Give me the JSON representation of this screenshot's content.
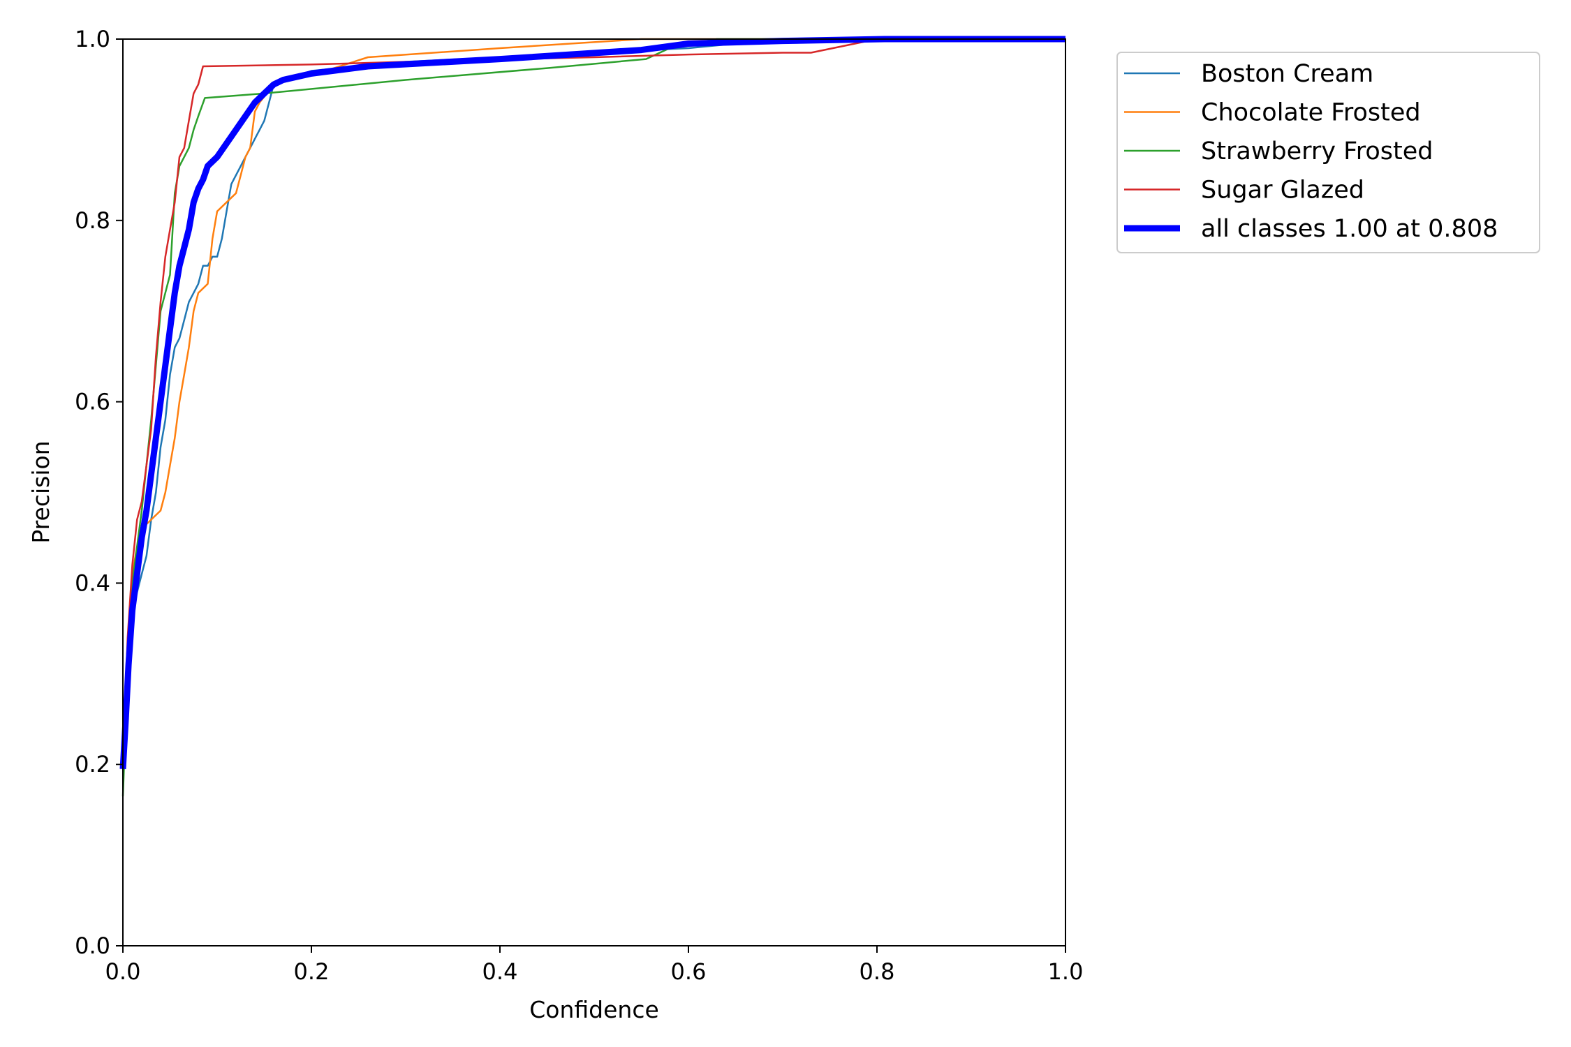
{
  "chart_data": {
    "type": "line",
    "title": "",
    "xlabel": "Confidence",
    "ylabel": "Precision",
    "xlim": [
      0,
      1
    ],
    "ylim": [
      0,
      1
    ],
    "xticks": [
      "0.0",
      "0.2",
      "0.4",
      "0.6",
      "0.8",
      "1.0"
    ],
    "yticks": [
      "0.0",
      "0.2",
      "0.4",
      "0.6",
      "0.8",
      "1.0"
    ],
    "grid": false,
    "legend_position": "outside-top-right",
    "series": [
      {
        "name": "Boston Cream",
        "color": "#1f77b4",
        "width": 2.5,
        "points": [
          [
            0.0,
            0.2
          ],
          [
            0.005,
            0.3
          ],
          [
            0.01,
            0.37
          ],
          [
            0.015,
            0.39
          ],
          [
            0.02,
            0.41
          ],
          [
            0.025,
            0.43
          ],
          [
            0.03,
            0.47
          ],
          [
            0.035,
            0.5
          ],
          [
            0.04,
            0.55
          ],
          [
            0.045,
            0.58
          ],
          [
            0.05,
            0.63
          ],
          [
            0.055,
            0.66
          ],
          [
            0.06,
            0.67
          ],
          [
            0.065,
            0.69
          ],
          [
            0.07,
            0.71
          ],
          [
            0.075,
            0.72
          ],
          [
            0.08,
            0.73
          ],
          [
            0.085,
            0.75
          ],
          [
            0.09,
            0.75
          ],
          [
            0.095,
            0.76
          ],
          [
            0.1,
            0.76
          ],
          [
            0.105,
            0.78
          ],
          [
            0.11,
            0.81
          ],
          [
            0.115,
            0.84
          ],
          [
            0.12,
            0.85
          ],
          [
            0.125,
            0.86
          ],
          [
            0.13,
            0.87
          ],
          [
            0.135,
            0.88
          ],
          [
            0.14,
            0.89
          ],
          [
            0.145,
            0.9
          ],
          [
            0.15,
            0.91
          ],
          [
            0.155,
            0.93
          ],
          [
            0.16,
            0.95
          ],
          [
            0.2,
            0.965
          ],
          [
            0.3,
            0.975
          ],
          [
            0.5,
            0.985
          ],
          [
            0.6,
            0.99
          ],
          [
            0.7,
            1.0
          ],
          [
            1.0,
            1.0
          ]
        ]
      },
      {
        "name": "Chocolate Frosted",
        "color": "#ff7f0e",
        "width": 2.5,
        "points": [
          [
            0.0,
            0.2
          ],
          [
            0.005,
            0.32
          ],
          [
            0.01,
            0.41
          ],
          [
            0.015,
            0.44
          ],
          [
            0.02,
            0.46
          ],
          [
            0.03,
            0.47
          ],
          [
            0.04,
            0.48
          ],
          [
            0.045,
            0.5
          ],
          [
            0.05,
            0.53
          ],
          [
            0.055,
            0.56
          ],
          [
            0.06,
            0.6
          ],
          [
            0.065,
            0.63
          ],
          [
            0.07,
            0.66
          ],
          [
            0.075,
            0.7
          ],
          [
            0.08,
            0.72
          ],
          [
            0.09,
            0.73
          ],
          [
            0.095,
            0.78
          ],
          [
            0.1,
            0.81
          ],
          [
            0.11,
            0.82
          ],
          [
            0.12,
            0.83
          ],
          [
            0.125,
            0.85
          ],
          [
            0.13,
            0.87
          ],
          [
            0.135,
            0.88
          ],
          [
            0.14,
            0.92
          ],
          [
            0.145,
            0.93
          ],
          [
            0.16,
            0.95
          ],
          [
            0.2,
            0.96
          ],
          [
            0.26,
            0.98
          ],
          [
            0.4,
            0.99
          ],
          [
            0.55,
            1.0
          ],
          [
            1.0,
            1.0
          ]
        ]
      },
      {
        "name": "Strawberry Frosted",
        "color": "#2ca02c",
        "width": 2.5,
        "points": [
          [
            0.0,
            0.165
          ],
          [
            0.005,
            0.3
          ],
          [
            0.01,
            0.4
          ],
          [
            0.02,
            0.48
          ],
          [
            0.03,
            0.58
          ],
          [
            0.04,
            0.7
          ],
          [
            0.05,
            0.74
          ],
          [
            0.055,
            0.83
          ],
          [
            0.06,
            0.86
          ],
          [
            0.065,
            0.87
          ],
          [
            0.07,
            0.88
          ],
          [
            0.075,
            0.9
          ],
          [
            0.08,
            0.915
          ],
          [
            0.087,
            0.935
          ],
          [
            0.15,
            0.94
          ],
          [
            0.3,
            0.955
          ],
          [
            0.45,
            0.968
          ],
          [
            0.555,
            0.978
          ],
          [
            0.58,
            0.99
          ],
          [
            0.63,
            1.0
          ],
          [
            1.0,
            1.0
          ]
        ]
      },
      {
        "name": "Sugar Glazed",
        "color": "#d62728",
        "width": 2.5,
        "points": [
          [
            0.0,
            0.2
          ],
          [
            0.005,
            0.34
          ],
          [
            0.01,
            0.42
          ],
          [
            0.015,
            0.47
          ],
          [
            0.02,
            0.49
          ],
          [
            0.025,
            0.53
          ],
          [
            0.03,
            0.57
          ],
          [
            0.035,
            0.65
          ],
          [
            0.04,
            0.71
          ],
          [
            0.045,
            0.76
          ],
          [
            0.05,
            0.79
          ],
          [
            0.055,
            0.82
          ],
          [
            0.06,
            0.87
          ],
          [
            0.065,
            0.88
          ],
          [
            0.07,
            0.91
          ],
          [
            0.075,
            0.94
          ],
          [
            0.08,
            0.95
          ],
          [
            0.085,
            0.97
          ],
          [
            0.2,
            0.972
          ],
          [
            0.3,
            0.975
          ],
          [
            0.5,
            0.98
          ],
          [
            0.6,
            0.983
          ],
          [
            0.7,
            0.985
          ],
          [
            0.73,
            0.985
          ],
          [
            0.8,
            1.0
          ],
          [
            1.0,
            1.0
          ]
        ]
      },
      {
        "name": "all classes 1.00 at 0.808",
        "color": "#0000ff",
        "width": 9,
        "points": [
          [
            0.0,
            0.195
          ],
          [
            0.003,
            0.25
          ],
          [
            0.006,
            0.31
          ],
          [
            0.01,
            0.37
          ],
          [
            0.015,
            0.41
          ],
          [
            0.02,
            0.45
          ],
          [
            0.025,
            0.48
          ],
          [
            0.03,
            0.52
          ],
          [
            0.035,
            0.56
          ],
          [
            0.04,
            0.6
          ],
          [
            0.045,
            0.64
          ],
          [
            0.05,
            0.68
          ],
          [
            0.055,
            0.72
          ],
          [
            0.06,
            0.75
          ],
          [
            0.065,
            0.77
          ],
          [
            0.07,
            0.79
          ],
          [
            0.075,
            0.82
          ],
          [
            0.08,
            0.835
          ],
          [
            0.085,
            0.845
          ],
          [
            0.09,
            0.86
          ],
          [
            0.1,
            0.87
          ],
          [
            0.11,
            0.885
          ],
          [
            0.12,
            0.9
          ],
          [
            0.13,
            0.915
          ],
          [
            0.14,
            0.93
          ],
          [
            0.15,
            0.94
          ],
          [
            0.16,
            0.95
          ],
          [
            0.17,
            0.955
          ],
          [
            0.2,
            0.962
          ],
          [
            0.26,
            0.97
          ],
          [
            0.4,
            0.978
          ],
          [
            0.55,
            0.988
          ],
          [
            0.6,
            0.995
          ],
          [
            0.7,
            0.998
          ],
          [
            0.808,
            1.0
          ],
          [
            1.0,
            1.0
          ]
        ]
      }
    ]
  }
}
